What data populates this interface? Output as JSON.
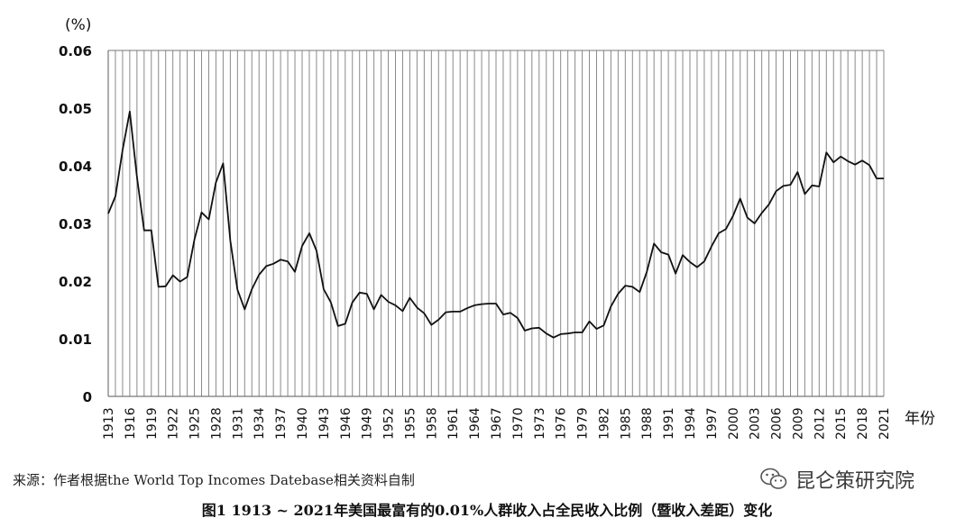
{
  "chart_data": {
    "type": "line",
    "ylabel": "(%)",
    "xlabel": "年份",
    "ylim": [
      0,
      0.06
    ],
    "yticks": [
      "0",
      "0.01",
      "0.02",
      "0.03",
      "0.04",
      "0.05",
      "0.06"
    ],
    "xticks": [
      1913,
      1916,
      1919,
      1922,
      1925,
      1928,
      1931,
      1934,
      1937,
      1940,
      1943,
      1946,
      1949,
      1952,
      1955,
      1958,
      1961,
      1964,
      1967,
      1970,
      1973,
      1976,
      1979,
      1982,
      1985,
      1988,
      1991,
      1994,
      1997,
      2000,
      2003,
      2006,
      2009,
      2012,
      2015,
      2018,
      2021
    ],
    "xrange": [
      1913,
      2021
    ],
    "grid": "vertical",
    "series": [
      {
        "x": [
          1913,
          1914,
          1915,
          1916,
          1917,
          1918,
          1919,
          1920,
          1921,
          1922,
          1923,
          1924,
          1925,
          1926,
          1927,
          1928,
          1929,
          1930,
          1931,
          1932,
          1933,
          1934,
          1935,
          1936,
          1937,
          1938,
          1939,
          1940,
          1941,
          1942,
          1943,
          1944,
          1945,
          1946,
          1947,
          1948,
          1949,
          1950,
          1951,
          1952,
          1953,
          1954,
          1955,
          1956,
          1957,
          1958,
          1959,
          1960,
          1961,
          1962,
          1963,
          1964,
          1965,
          1966,
          1967,
          1968,
          1969,
          1970,
          1971,
          1972,
          1973,
          1974,
          1975,
          1976,
          1977,
          1978,
          1979,
          1980,
          1981,
          1982,
          1983,
          1984,
          1985,
          1986,
          1987,
          1988,
          1989,
          1990,
          1991,
          1992,
          1993,
          1994,
          1995,
          1996,
          1997,
          1998,
          1999,
          2000,
          2001,
          2002,
          2003,
          2004,
          2005,
          2006,
          2007,
          2008,
          2009,
          2010,
          2011,
          2012,
          2013,
          2014,
          2015,
          2016,
          2017,
          2018,
          2019,
          2020,
          2021
        ],
        "values": [
          0.0317,
          0.0347,
          0.0427,
          0.0494,
          0.038,
          0.0288,
          0.0288,
          0.019,
          0.0191,
          0.021,
          0.0199,
          0.0207,
          0.0272,
          0.0319,
          0.0307,
          0.0371,
          0.0404,
          0.027,
          0.0185,
          0.0151,
          0.0186,
          0.0211,
          0.0226,
          0.023,
          0.0237,
          0.0234,
          0.0216,
          0.0261,
          0.0283,
          0.0253,
          0.0186,
          0.0163,
          0.0122,
          0.0126,
          0.0163,
          0.018,
          0.0178,
          0.0151,
          0.0176,
          0.0164,
          0.0158,
          0.0148,
          0.0171,
          0.0154,
          0.0144,
          0.0124,
          0.0133,
          0.0146,
          0.0147,
          0.0147,
          0.0153,
          0.0158,
          0.016,
          0.0161,
          0.0161,
          0.0142,
          0.0145,
          0.0136,
          0.0114,
          0.0118,
          0.0119,
          0.0109,
          0.0102,
          0.0108,
          0.0109,
          0.0111,
          0.0111,
          0.013,
          0.0117,
          0.0123,
          0.0156,
          0.0178,
          0.0192,
          0.019,
          0.0181,
          0.0216,
          0.0265,
          0.025,
          0.0246,
          0.0213,
          0.0245,
          0.0233,
          0.0224,
          0.0234,
          0.026,
          0.0283,
          0.029,
          0.0313,
          0.0343,
          0.031,
          0.03,
          0.0318,
          0.0333,
          0.0356,
          0.0365,
          0.0367,
          0.0389,
          0.0351,
          0.0366,
          0.0364,
          0.0423,
          0.0406,
          0.0416,
          0.0408,
          0.0402,
          0.0409,
          0.0401,
          0.0378,
          0.0378
        ]
      }
    ]
  },
  "source_text": "来源：作者根据the World Top Incomes Datebase相关资料自制",
  "caption_text": "图1  1913 ~ 2021年美国最富有的0.01%人群收入占全民收入比例（暨收入差距）变化",
  "watermark": {
    "text": "昆仑策研究院",
    "icon": "wechat-icon"
  },
  "colors": {
    "line": "#111111",
    "grid": "#8a8a8a",
    "axis": "#777777"
  }
}
